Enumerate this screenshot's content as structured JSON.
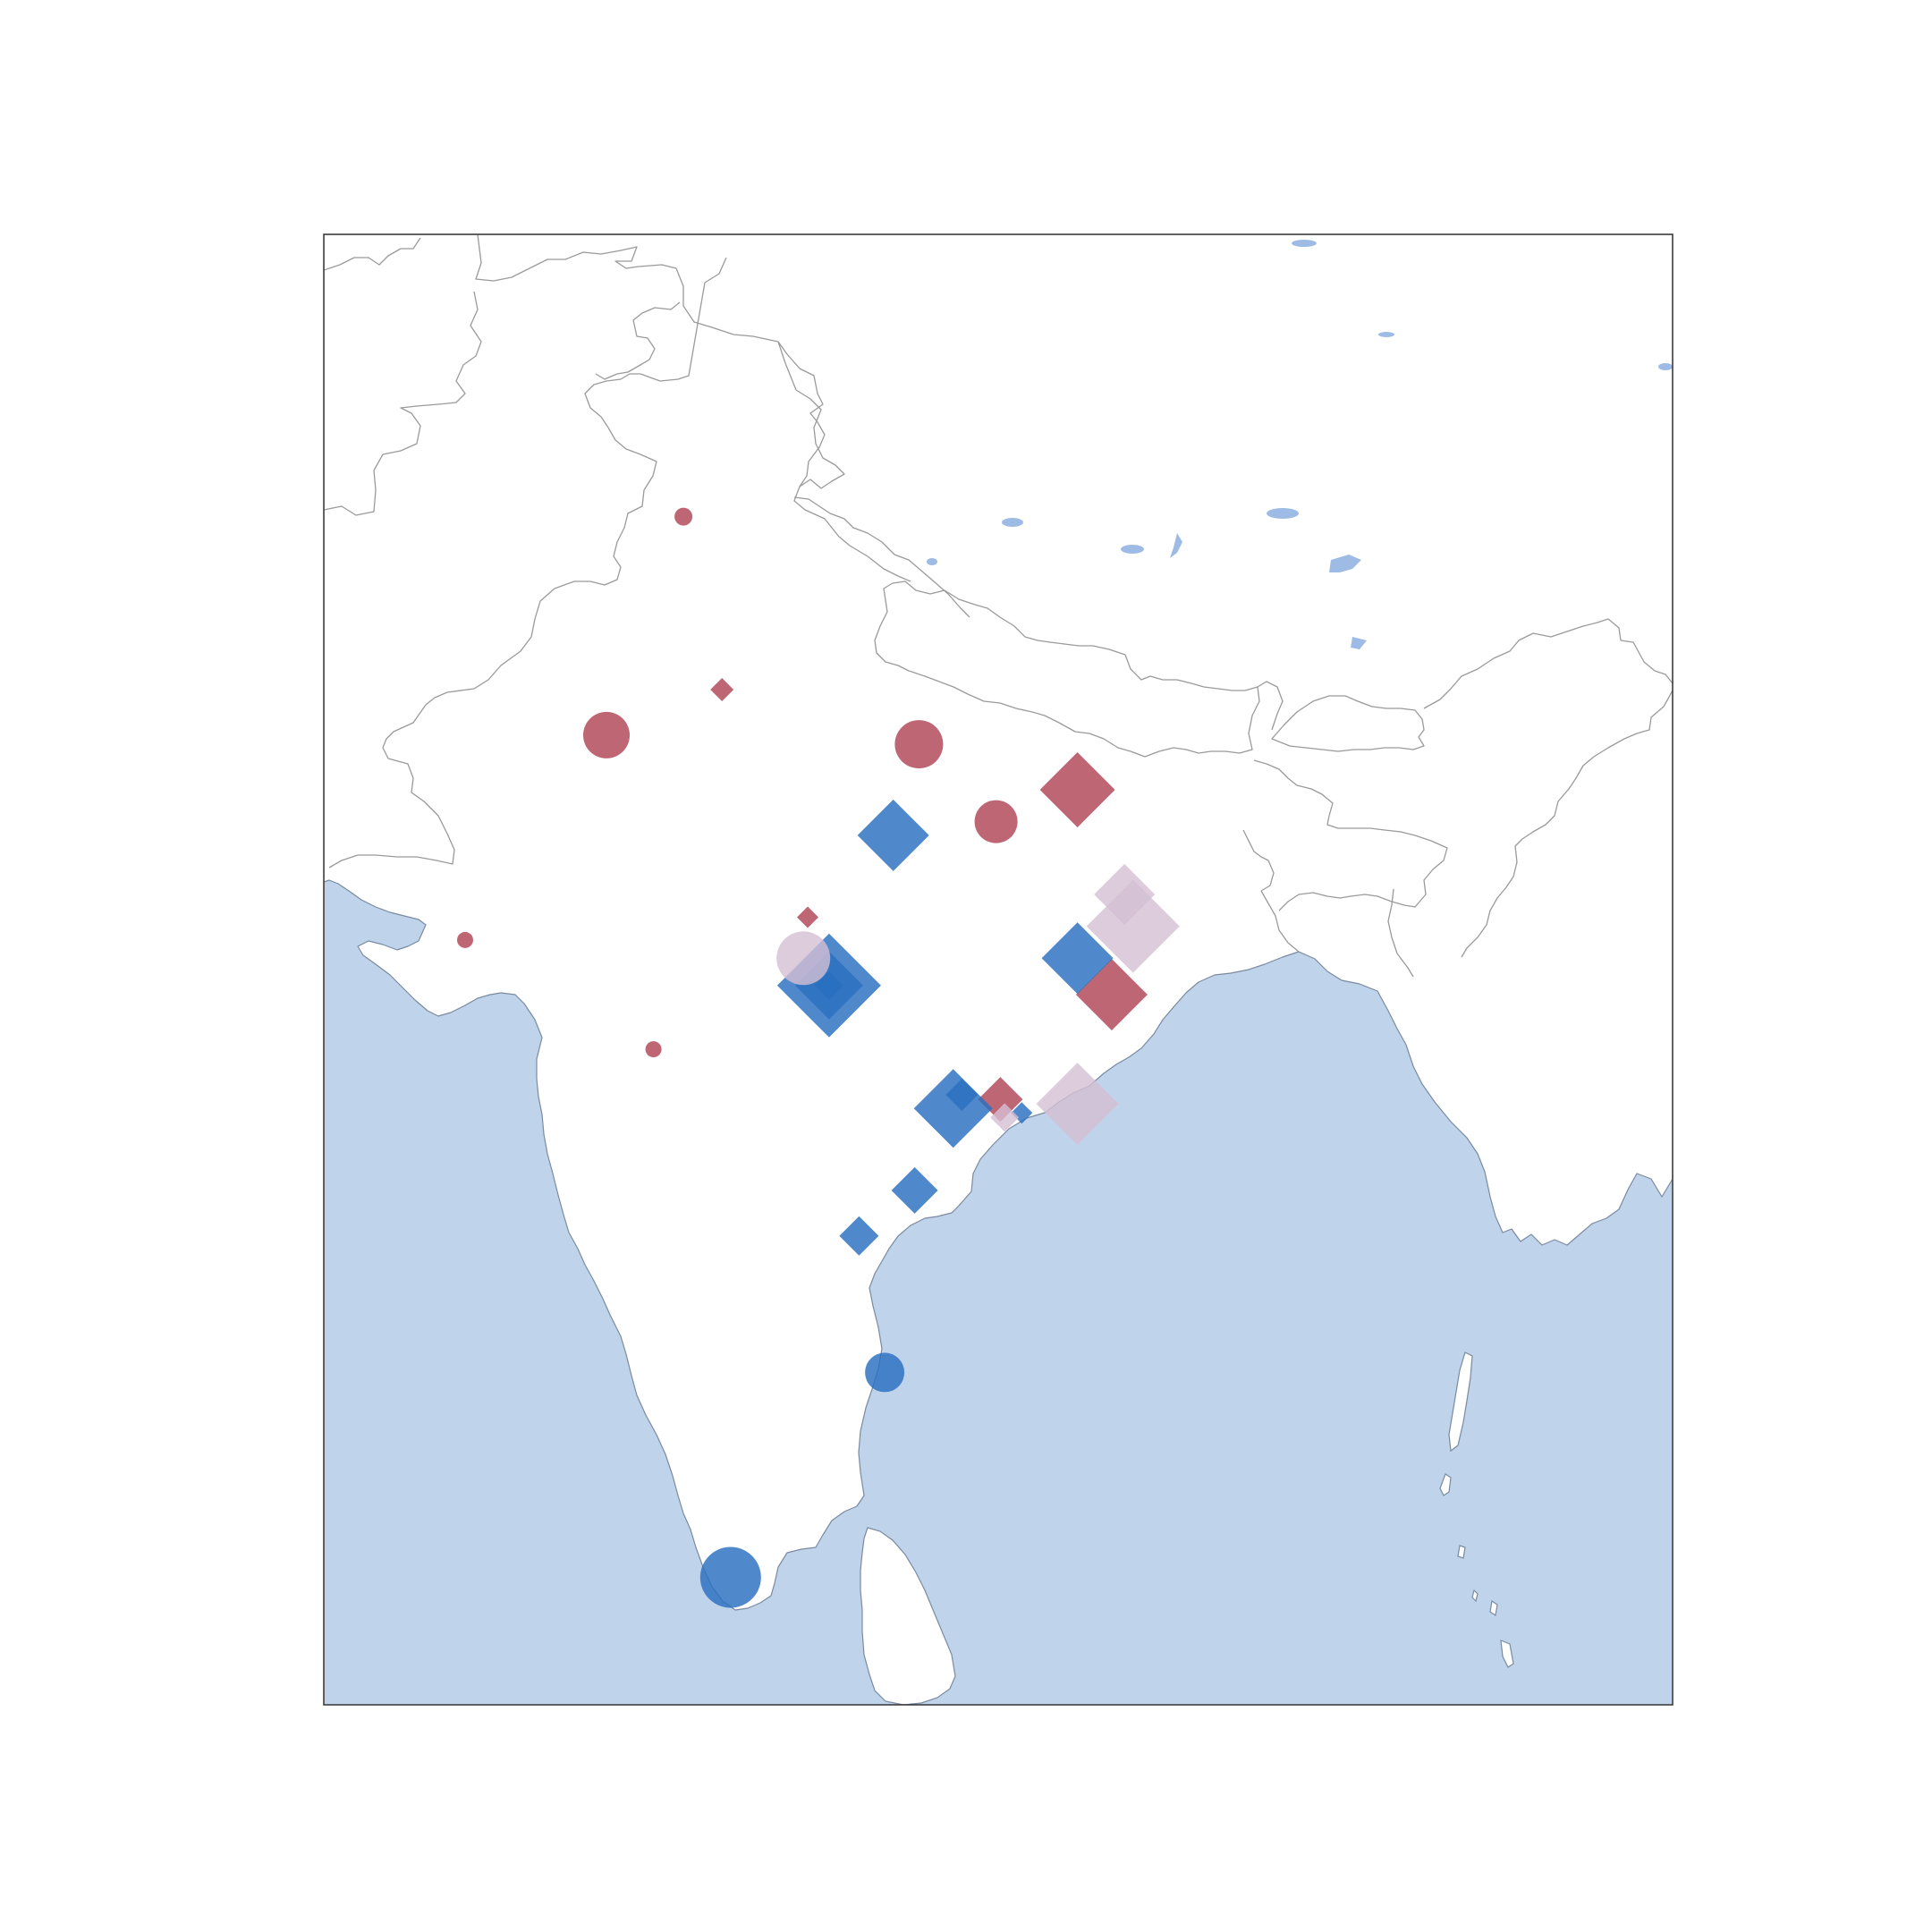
{
  "chart_data": {
    "type": "scatter",
    "title": "",
    "xlabel": "",
    "ylabel": "",
    "xlim": [
      66.0,
      97.5
    ],
    "ylim": [
      5.5,
      37.8
    ],
    "colors": {
      "sea": "#bfd3eb",
      "lake": "#9dbbe4",
      "land": "#ffffff",
      "border": "#9a9a9a",
      "coast": "#7a8aa0",
      "frame": "#333333",
      "red": "#b04455",
      "blue": "#2a6fbf",
      "lavender": "#d4bfd3"
    },
    "series": [
      {
        "marker": "circle",
        "color_key": "red",
        "points": [
          {
            "lon": 74.4,
            "lat": 31.6,
            "size": 10
          },
          {
            "lon": 72.6,
            "lat": 26.8,
            "size": 26
          },
          {
            "lon": 79.9,
            "lat": 26.6,
            "size": 27
          },
          {
            "lon": 81.7,
            "lat": 24.9,
            "size": 24
          },
          {
            "lon": 69.3,
            "lat": 22.3,
            "size": 9
          },
          {
            "lon": 73.7,
            "lat": 19.9,
            "size": 9
          }
        ]
      },
      {
        "marker": "diamond",
        "color_key": "red",
        "points": [
          {
            "lon": 75.3,
            "lat": 27.8,
            "size": 13
          },
          {
            "lon": 83.6,
            "lat": 25.6,
            "size": 42
          },
          {
            "lon": 77.3,
            "lat": 22.8,
            "size": 12
          },
          {
            "lon": 84.4,
            "lat": 21.1,
            "size": 40
          },
          {
            "lon": 81.8,
            "lat": 18.8,
            "size": 25
          }
        ]
      },
      {
        "marker": "diamond",
        "color_key": "blue",
        "points": [
          {
            "lon": 79.3,
            "lat": 24.6,
            "size": 40
          },
          {
            "lon": 77.8,
            "lat": 21.3,
            "size": 58
          },
          {
            "lon": 77.8,
            "lat": 21.3,
            "size": 38
          },
          {
            "lon": 77.8,
            "lat": 21.3,
            "size": 16
          },
          {
            "lon": 83.6,
            "lat": 21.9,
            "size": 40
          },
          {
            "lon": 80.7,
            "lat": 18.6,
            "size": 44
          },
          {
            "lon": 80.9,
            "lat": 18.9,
            "size": 18
          },
          {
            "lon": 82.3,
            "lat": 18.5,
            "size": 12
          },
          {
            "lon": 79.8,
            "lat": 16.8,
            "size": 26
          },
          {
            "lon": 78.5,
            "lat": 15.8,
            "size": 22
          }
        ]
      },
      {
        "marker": "circle",
        "color_key": "blue",
        "points": [
          {
            "lon": 79.1,
            "lat": 12.8,
            "size": 22
          },
          {
            "lon": 75.5,
            "lat": 8.3,
            "size": 34
          }
        ]
      },
      {
        "marker": "circle",
        "color_key": "lavender",
        "points": [
          {
            "lon": 77.2,
            "lat": 21.9,
            "size": 30
          }
        ]
      },
      {
        "marker": "diamond",
        "color_key": "lavender",
        "points": [
          {
            "lon": 84.7,
            "lat": 23.3,
            "size": 34
          },
          {
            "lon": 84.9,
            "lat": 22.6,
            "size": 52
          },
          {
            "lon": 83.6,
            "lat": 18.7,
            "size": 46
          },
          {
            "lon": 81.9,
            "lat": 18.4,
            "size": 16
          }
        ]
      }
    ]
  }
}
